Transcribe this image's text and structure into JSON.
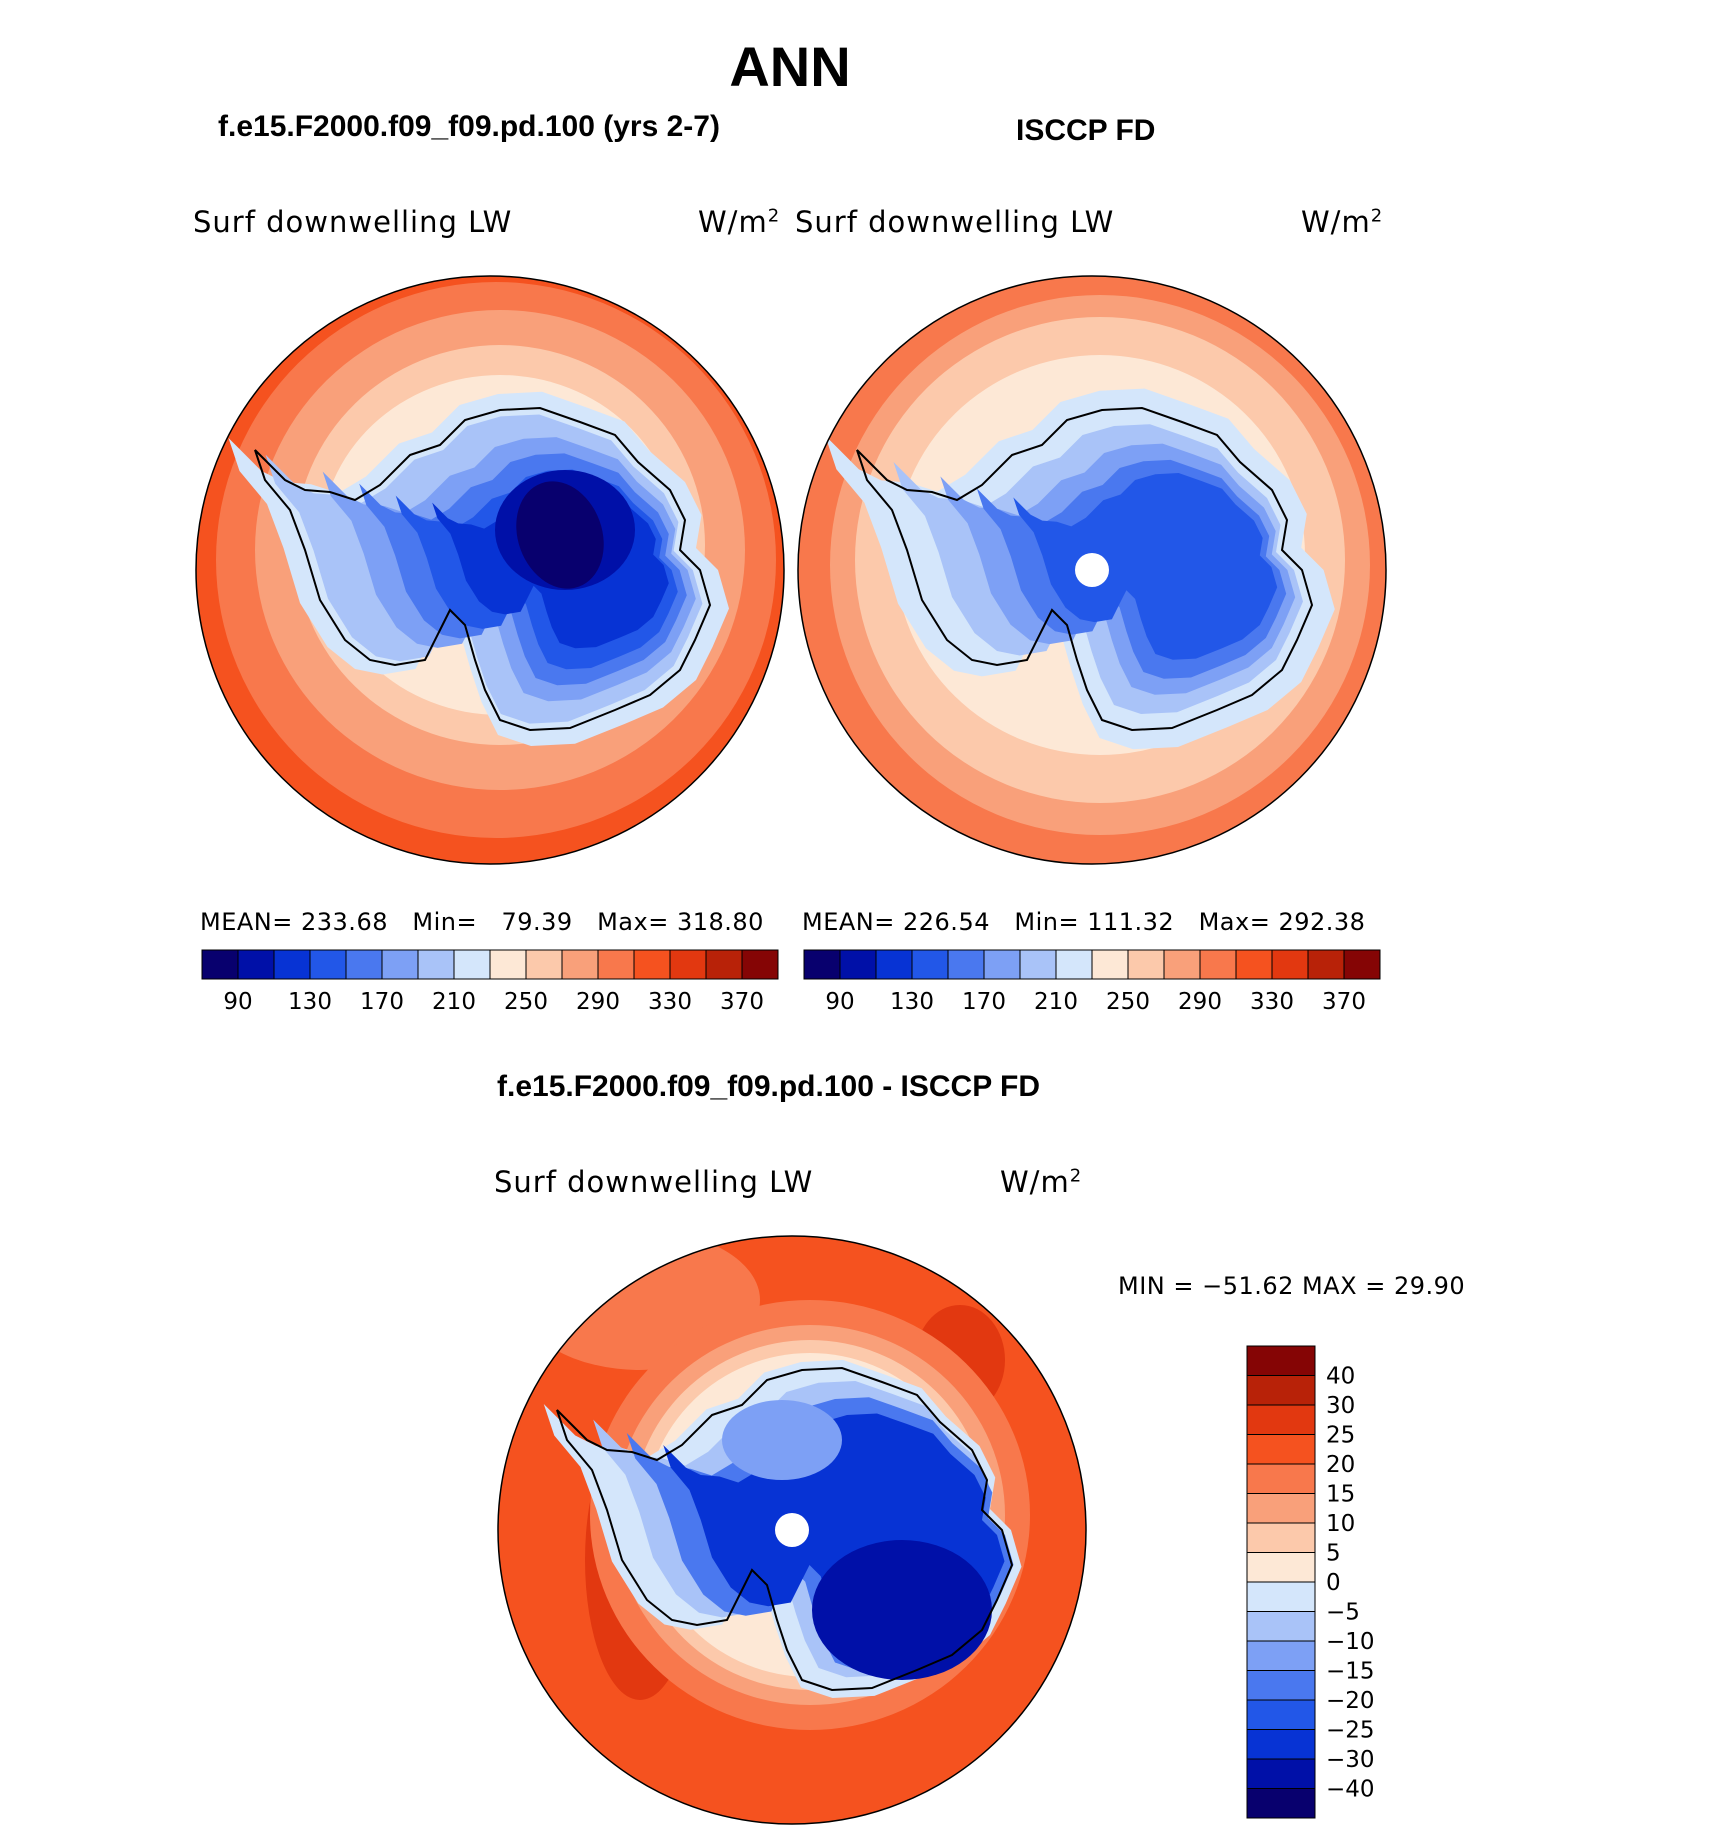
{
  "title": "ANN",
  "panels": [
    {
      "case_title": "f.e15.F2000.f09_f09.pd.100 (yrs 2-7)",
      "variable": "Surf downwelling LW",
      "units_base": "W/m",
      "units_exp": "2",
      "stats": {
        "mean_label": "MEAN=",
        "mean": "233.68",
        "min_label": "Min=",
        "min": "79.39",
        "max_label": "Max=",
        "max": "318.80"
      }
    },
    {
      "case_title": "ISCCP FD",
      "variable": "Surf downwelling LW",
      "units_base": "W/m",
      "units_exp": "2",
      "stats": {
        "mean_label": "MEAN=",
        "mean": "226.54",
        "min_label": "Min=",
        "min": "111.32",
        "max_label": "Max=",
        "max": "292.38"
      }
    },
    {
      "case_title": "f.e15.F2000.f09_f09.pd.100 - ISCCP FD",
      "variable": "Surf downwelling LW",
      "units_base": "W/m",
      "units_exp": "2",
      "stats": {
        "minmax": "MIN = −51.62 MAX =   29.90"
      }
    }
  ],
  "abs_colorbar": {
    "ticks": [
      "90",
      "130",
      "170",
      "210",
      "250",
      "290",
      "330",
      "370"
    ],
    "colors": [
      "#08006e",
      "#0010a8",
      "#0733d4",
      "#2257e8",
      "#4a78ef",
      "#7da0f5",
      "#a9c3f8",
      "#d4e6fb",
      "#fde8d6",
      "#fcc9ab",
      "#f9a07a",
      "#f8784c",
      "#f5521f",
      "#e23810",
      "#b82208",
      "#850505"
    ]
  },
  "diff_colorbar": {
    "ticks": [
      "40",
      "30",
      "25",
      "20",
      "15",
      "10",
      "5",
      "0",
      "−5",
      "−10",
      "−15",
      "−20",
      "−25",
      "−30",
      "−40"
    ],
    "colors_top_to_bottom": [
      "#850505",
      "#b82208",
      "#e23810",
      "#f5521f",
      "#f8784c",
      "#f9a07a",
      "#fcc9ab",
      "#fde8d6",
      "#d4e6fb",
      "#a9c3f8",
      "#7da0f5",
      "#4a78ef",
      "#2257e8",
      "#0733d4",
      "#0010a8",
      "#08006e"
    ]
  }
}
